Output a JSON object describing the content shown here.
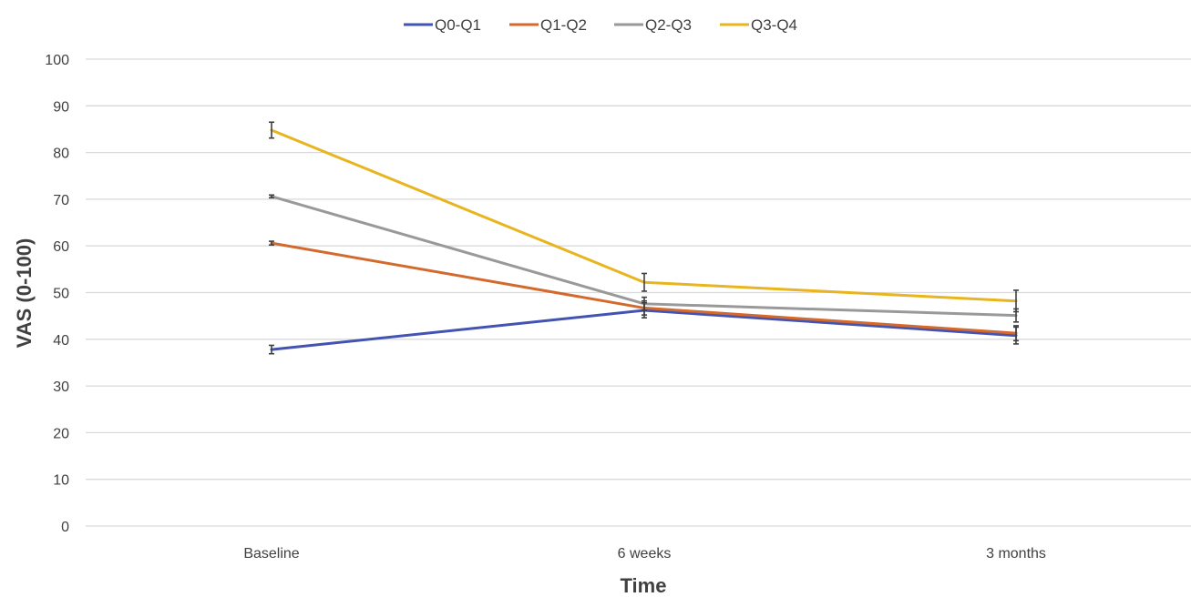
{
  "chart_data": {
    "type": "line",
    "xlabel": "Time",
    "ylabel": "VAS (0-100)",
    "ylim": [
      0,
      100
    ],
    "yticks": [
      0,
      10,
      20,
      30,
      40,
      50,
      60,
      70,
      80,
      90,
      100
    ],
    "grid": true,
    "legend_position": "top",
    "categories": [
      "Baseline",
      "6 weeks",
      "3 months"
    ],
    "series": [
      {
        "name": "Q0-Q1",
        "color": "#4353b3",
        "values": [
          37.8,
          46.2,
          40.8
        ],
        "error": [
          0.9,
          1.6,
          1.8
        ]
      },
      {
        "name": "Q1-Q2",
        "color": "#d4692d",
        "values": [
          60.6,
          46.7,
          41.3
        ],
        "error": [
          0.4,
          1.5,
          1.6
        ]
      },
      {
        "name": "Q2-Q3",
        "color": "#999999",
        "values": [
          70.6,
          47.6,
          45.1
        ],
        "error": [
          0.3,
          1.4,
          1.4
        ]
      },
      {
        "name": "Q3-Q4",
        "color": "#e8b520",
        "values": [
          84.8,
          52.2,
          48.2
        ],
        "error": [
          1.7,
          1.9,
          2.3
        ]
      }
    ]
  }
}
